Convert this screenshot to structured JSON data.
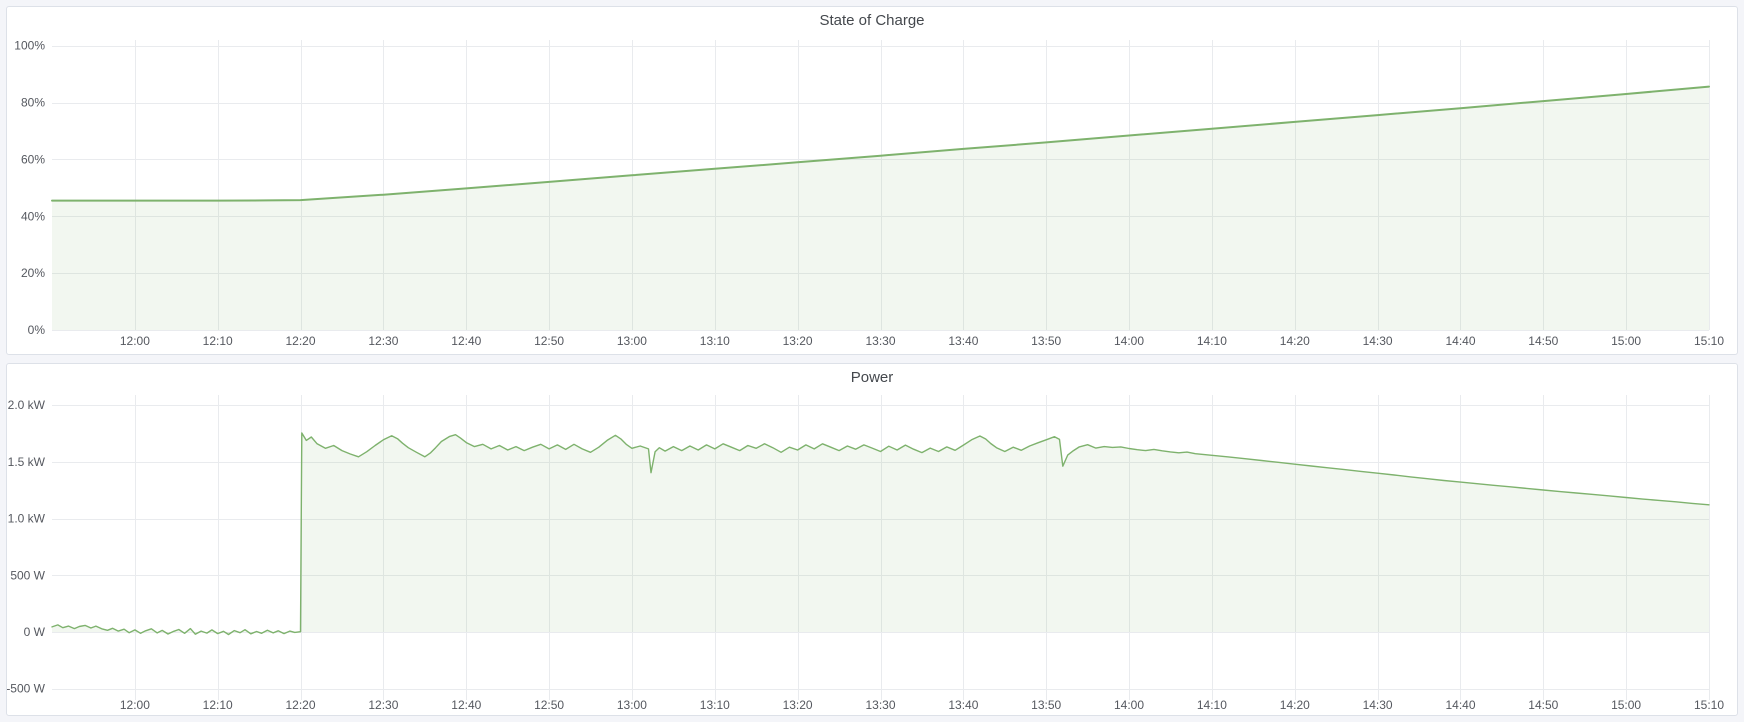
{
  "theme": {
    "page_background": "#f4f5f9",
    "panel_background": "#ffffff",
    "panel_border": "#dde1e8",
    "title_text": "#44484d",
    "axis_text": "#55585f",
    "gridline": "#e9ebee",
    "series_green": "#7eb26d",
    "series_green_fill": "rgba(126,178,109,0.10)"
  },
  "panels": [
    {
      "title": "State of Charge"
    },
    {
      "title": "Power"
    }
  ],
  "chart_data": [
    {
      "type": "area",
      "title": "State of Charge",
      "unit": "percent",
      "legend": "none",
      "grid": true,
      "xlim": [
        0,
        200
      ],
      "ylim": [
        0,
        102
      ],
      "baseline": 0,
      "line_color": "#7eb26d",
      "fill_color": "rgba(126,178,109,0.10)",
      "line_width": 2,
      "x_ticks": [
        {
          "t": 10,
          "label": "12:00"
        },
        {
          "t": 20,
          "label": "12:10"
        },
        {
          "t": 30,
          "label": "12:20"
        },
        {
          "t": 40,
          "label": "12:30"
        },
        {
          "t": 50,
          "label": "12:40"
        },
        {
          "t": 60,
          "label": "12:50"
        },
        {
          "t": 70,
          "label": "13:00"
        },
        {
          "t": 80,
          "label": "13:10"
        },
        {
          "t": 90,
          "label": "13:20"
        },
        {
          "t": 100,
          "label": "13:30"
        },
        {
          "t": 110,
          "label": "13:40"
        },
        {
          "t": 120,
          "label": "13:50"
        },
        {
          "t": 130,
          "label": "14:00"
        },
        {
          "t": 140,
          "label": "14:10"
        },
        {
          "t": 150,
          "label": "14:20"
        },
        {
          "t": 160,
          "label": "14:30"
        },
        {
          "t": 170,
          "label": "14:40"
        },
        {
          "t": 180,
          "label": "14:50"
        },
        {
          "t": 190,
          "label": "15:00"
        },
        {
          "t": 200,
          "label": "15:10"
        }
      ],
      "y_ticks": [
        {
          "v": 0,
          "label": "0%"
        },
        {
          "v": 20,
          "label": "20%"
        },
        {
          "v": 40,
          "label": "40%"
        },
        {
          "v": 60,
          "label": "60%"
        },
        {
          "v": 80,
          "label": "80%"
        },
        {
          "v": 100,
          "label": "100%"
        }
      ],
      "points": [
        [
          0,
          45.5
        ],
        [
          10,
          45.5
        ],
        [
          20,
          45.5
        ],
        [
          26,
          45.6
        ],
        [
          30,
          45.7
        ],
        [
          40,
          47.6
        ],
        [
          50,
          49.8
        ],
        [
          60,
          52.1
        ],
        [
          70,
          54.4
        ],
        [
          80,
          56.7
        ],
        [
          90,
          59.0
        ],
        [
          100,
          61.3
        ],
        [
          110,
          63.7
        ],
        [
          120,
          66.0
        ],
        [
          130,
          68.4
        ],
        [
          140,
          70.8
        ],
        [
          150,
          73.2
        ],
        [
          160,
          75.6
        ],
        [
          170,
          78.0
        ],
        [
          180,
          80.5
        ],
        [
          190,
          83.0
        ],
        [
          200,
          85.6
        ]
      ]
    },
    {
      "type": "area",
      "title": "Power",
      "unit": "watt",
      "legend": "none",
      "grid": true,
      "xlim": [
        0,
        200
      ],
      "ylim": [
        -600,
        2090
      ],
      "baseline": 0,
      "line_color": "#7eb26d",
      "fill_color": "rgba(126,178,109,0.10)",
      "line_width": 1.4,
      "x_ticks": [
        {
          "t": 10,
          "label": "12:00"
        },
        {
          "t": 20,
          "label": "12:10"
        },
        {
          "t": 30,
          "label": "12:20"
        },
        {
          "t": 40,
          "label": "12:30"
        },
        {
          "t": 50,
          "label": "12:40"
        },
        {
          "t": 60,
          "label": "12:50"
        },
        {
          "t": 70,
          "label": "13:00"
        },
        {
          "t": 80,
          "label": "13:10"
        },
        {
          "t": 90,
          "label": "13:20"
        },
        {
          "t": 100,
          "label": "13:30"
        },
        {
          "t": 110,
          "label": "13:40"
        },
        {
          "t": 120,
          "label": "13:50"
        },
        {
          "t": 130,
          "label": "14:00"
        },
        {
          "t": 140,
          "label": "14:10"
        },
        {
          "t": 150,
          "label": "14:20"
        },
        {
          "t": 160,
          "label": "14:30"
        },
        {
          "t": 170,
          "label": "14:40"
        },
        {
          "t": 180,
          "label": "14:50"
        },
        {
          "t": 190,
          "label": "15:00"
        },
        {
          "t": 200,
          "label": "15:10"
        }
      ],
      "y_ticks": [
        {
          "v": -500,
          "label": "-500 W"
        },
        {
          "v": 0,
          "label": "0 W"
        },
        {
          "v": 500,
          "label": "500 W"
        },
        {
          "v": 1000,
          "label": "1.0 kW"
        },
        {
          "v": 1500,
          "label": "1.5 kW"
        },
        {
          "v": 2000,
          "label": "2.0 kW"
        }
      ],
      "points": [
        [
          0,
          45
        ],
        [
          0.7,
          62
        ],
        [
          1.3,
          38
        ],
        [
          2,
          52
        ],
        [
          2.7,
          30
        ],
        [
          3.3,
          48
        ],
        [
          4,
          58
        ],
        [
          4.7,
          35
        ],
        [
          5.3,
          52
        ],
        [
          6,
          28
        ],
        [
          6.7,
          15
        ],
        [
          7.3,
          32
        ],
        [
          8,
          8
        ],
        [
          8.7,
          24
        ],
        [
          9.3,
          -6
        ],
        [
          10,
          18
        ],
        [
          10.7,
          -12
        ],
        [
          11.3,
          10
        ],
        [
          12,
          28
        ],
        [
          12.7,
          -8
        ],
        [
          13.3,
          14
        ],
        [
          14,
          -18
        ],
        [
          14.7,
          6
        ],
        [
          15.3,
          22
        ],
        [
          16,
          -12
        ],
        [
          16.7,
          30
        ],
        [
          17.3,
          -20
        ],
        [
          18,
          8
        ],
        [
          18.7,
          -10
        ],
        [
          19.3,
          18
        ],
        [
          20,
          -14
        ],
        [
          20.7,
          6
        ],
        [
          21.3,
          -22
        ],
        [
          22,
          12
        ],
        [
          22.7,
          -6
        ],
        [
          23.3,
          20
        ],
        [
          24,
          -16
        ],
        [
          24.7,
          4
        ],
        [
          25.3,
          -12
        ],
        [
          26,
          16
        ],
        [
          26.7,
          -8
        ],
        [
          27.3,
          10
        ],
        [
          28,
          -14
        ],
        [
          28.7,
          8
        ],
        [
          29.3,
          -4
        ],
        [
          30,
          2
        ],
        [
          30.15,
          1755
        ],
        [
          30.7,
          1690
        ],
        [
          31.3,
          1720
        ],
        [
          32,
          1660
        ],
        [
          33,
          1620
        ],
        [
          34,
          1645
        ],
        [
          35,
          1600
        ],
        [
          36,
          1570
        ],
        [
          37,
          1545
        ],
        [
          38,
          1590
        ],
        [
          39,
          1645
        ],
        [
          40,
          1695
        ],
        [
          41,
          1730
        ],
        [
          41.7,
          1705
        ],
        [
          42.3,
          1665
        ],
        [
          43,
          1625
        ],
        [
          44,
          1585
        ],
        [
          45,
          1545
        ],
        [
          45.7,
          1580
        ],
        [
          46.3,
          1625
        ],
        [
          47,
          1680
        ],
        [
          48,
          1725
        ],
        [
          48.7,
          1740
        ],
        [
          49.3,
          1710
        ],
        [
          50,
          1670
        ],
        [
          51,
          1635
        ],
        [
          52,
          1655
        ],
        [
          53,
          1615
        ],
        [
          54,
          1645
        ],
        [
          55,
          1605
        ],
        [
          56,
          1635
        ],
        [
          57,
          1600
        ],
        [
          58,
          1630
        ],
        [
          59,
          1655
        ],
        [
          60,
          1615
        ],
        [
          61,
          1650
        ],
        [
          62,
          1610
        ],
        [
          63,
          1655
        ],
        [
          64,
          1615
        ],
        [
          65,
          1585
        ],
        [
          66,
          1630
        ],
        [
          67,
          1690
        ],
        [
          68,
          1735
        ],
        [
          68.7,
          1700
        ],
        [
          69.3,
          1655
        ],
        [
          70,
          1620
        ],
        [
          71,
          1640
        ],
        [
          72,
          1615
        ],
        [
          72.3,
          1405
        ],
        [
          72.8,
          1590
        ],
        [
          73.3,
          1625
        ],
        [
          74,
          1595
        ],
        [
          75,
          1635
        ],
        [
          76,
          1600
        ],
        [
          77,
          1640
        ],
        [
          78,
          1605
        ],
        [
          79,
          1650
        ],
        [
          80,
          1615
        ],
        [
          81,
          1660
        ],
        [
          82,
          1630
        ],
        [
          83,
          1600
        ],
        [
          84,
          1645
        ],
        [
          85,
          1620
        ],
        [
          86,
          1660
        ],
        [
          87,
          1625
        ],
        [
          88,
          1585
        ],
        [
          89,
          1630
        ],
        [
          90,
          1605
        ],
        [
          91,
          1650
        ],
        [
          92,
          1615
        ],
        [
          93,
          1660
        ],
        [
          94,
          1630
        ],
        [
          95,
          1600
        ],
        [
          96,
          1640
        ],
        [
          97,
          1612
        ],
        [
          98,
          1650
        ],
        [
          99,
          1622
        ],
        [
          100,
          1592
        ],
        [
          101,
          1638
        ],
        [
          102,
          1605
        ],
        [
          103,
          1648
        ],
        [
          104,
          1612
        ],
        [
          105,
          1582
        ],
        [
          106,
          1622
        ],
        [
          107,
          1592
        ],
        [
          108,
          1632
        ],
        [
          109,
          1602
        ],
        [
          110,
          1648
        ],
        [
          111,
          1695
        ],
        [
          112,
          1728
        ],
        [
          112.7,
          1702
        ],
        [
          113.3,
          1662
        ],
        [
          114,
          1625
        ],
        [
          115,
          1592
        ],
        [
          116,
          1630
        ],
        [
          117,
          1602
        ],
        [
          118,
          1640
        ],
        [
          119,
          1668
        ],
        [
          120,
          1695
        ],
        [
          121,
          1722
        ],
        [
          121.6,
          1698
        ],
        [
          122,
          1462
        ],
        [
          122.6,
          1560
        ],
        [
          123.3,
          1600
        ],
        [
          124,
          1632
        ],
        [
          125,
          1652
        ],
        [
          126,
          1622
        ],
        [
          127,
          1635
        ],
        [
          128,
          1628
        ],
        [
          129,
          1632
        ],
        [
          130,
          1618
        ],
        [
          131,
          1608
        ],
        [
          132,
          1600
        ],
        [
          133,
          1610
        ],
        [
          134,
          1598
        ],
        [
          135,
          1588
        ],
        [
          136,
          1580
        ],
        [
          137,
          1586
        ],
        [
          138,
          1572
        ],
        [
          140,
          1558
        ],
        [
          142,
          1544
        ],
        [
          144,
          1528
        ],
        [
          146,
          1512
        ],
        [
          148,
          1496
        ],
        [
          150,
          1480
        ],
        [
          152,
          1464
        ],
        [
          154,
          1448
        ],
        [
          156,
          1432
        ],
        [
          158,
          1416
        ],
        [
          160,
          1400
        ],
        [
          162,
          1384
        ],
        [
          164,
          1368
        ],
        [
          166,
          1352
        ],
        [
          168,
          1336
        ],
        [
          170,
          1322
        ],
        [
          172,
          1308
        ],
        [
          174,
          1294
        ],
        [
          176,
          1280
        ],
        [
          178,
          1266
        ],
        [
          180,
          1252
        ],
        [
          182,
          1238
        ],
        [
          184,
          1226
        ],
        [
          186,
          1213
        ],
        [
          188,
          1200
        ],
        [
          190,
          1186
        ],
        [
          192,
          1172
        ],
        [
          194,
          1160
        ],
        [
          196,
          1148
        ],
        [
          198,
          1134
        ],
        [
          200,
          1122
        ]
      ]
    }
  ]
}
